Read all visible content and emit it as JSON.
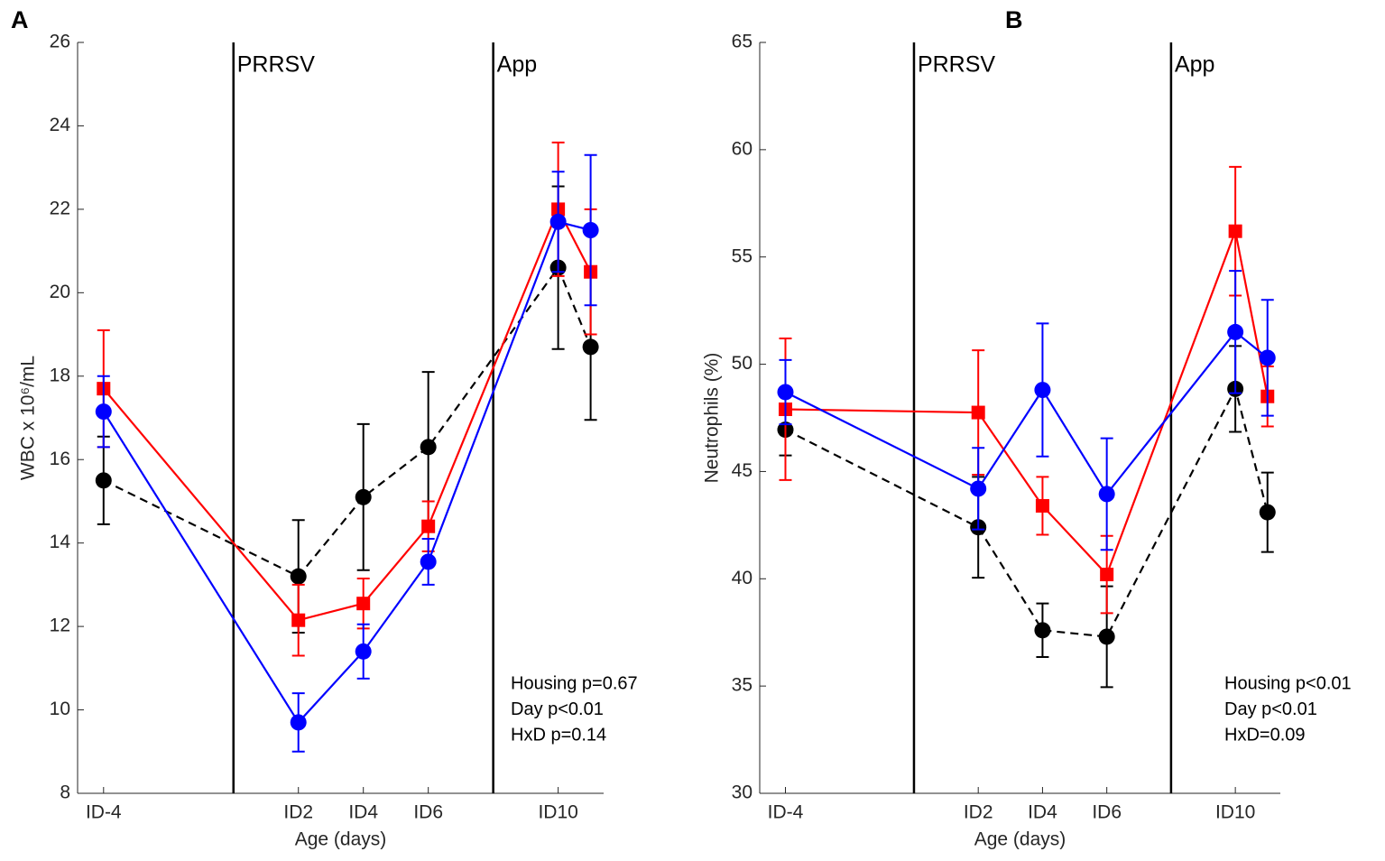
{
  "chart_data": [
    {
      "type": "line",
      "panel": "A",
      "xlabel": "Age (days)",
      "ylabel": "WBC x 10⁶/mL",
      "x": [
        -4,
        2,
        4,
        6,
        10,
        11
      ],
      "xlim": [
        -4.8,
        11.4
      ],
      "xticks": [
        {
          "value": -4,
          "label": "ID-4"
        },
        {
          "value": 2,
          "label": "ID2"
        },
        {
          "value": 4,
          "label": "ID4"
        },
        {
          "value": 6,
          "label": "ID6"
        },
        {
          "value": 10,
          "label": "ID10"
        }
      ],
      "ylim": [
        8,
        26
      ],
      "yticks": [
        8,
        10,
        12,
        14,
        16,
        18,
        20,
        22,
        24,
        26
      ],
      "vlines": [
        {
          "x": 0,
          "label": "PRRSV"
        },
        {
          "x": 8,
          "label": "App"
        }
      ],
      "stats": [
        "Housing p=0.67",
        "Day p<0.01",
        "HxD p=0.14"
      ],
      "series": [
        {
          "color": "#000000",
          "marker": "circle",
          "dashed": true,
          "values": [
            15.5,
            13.2,
            15.1,
            16.3,
            20.6,
            18.7
          ],
          "errors": [
            1.05,
            1.35,
            1.75,
            1.8,
            1.95,
            1.75
          ]
        },
        {
          "color": "#ff0000",
          "marker": "square",
          "dashed": false,
          "values": [
            17.7,
            12.15,
            12.55,
            14.4,
            22.0,
            20.5
          ],
          "errors": [
            1.4,
            0.85,
            0.6,
            0.6,
            1.6,
            1.5
          ]
        },
        {
          "color": "#0000ff",
          "marker": "circle",
          "dashed": false,
          "values": [
            17.15,
            9.7,
            11.4,
            13.55,
            21.7,
            21.5
          ],
          "errors": [
            0.85,
            0.7,
            0.65,
            0.55,
            1.2,
            1.8
          ]
        }
      ]
    },
    {
      "type": "line",
      "panel": "B",
      "xlabel": "Age (days)",
      "ylabel": "Neutrophils (%)",
      "x": [
        -4,
        2,
        4,
        6,
        10,
        11
      ],
      "xlim": [
        -4.8,
        11.4
      ],
      "xticks": [
        {
          "value": -4,
          "label": "ID-4"
        },
        {
          "value": 2,
          "label": "ID2"
        },
        {
          "value": 4,
          "label": "ID4"
        },
        {
          "value": 6,
          "label": "ID6"
        },
        {
          "value": 10,
          "label": "ID10"
        }
      ],
      "ylim": [
        30,
        65
      ],
      "yticks": [
        30,
        35,
        40,
        45,
        50,
        55,
        60,
        65
      ],
      "vlines": [
        {
          "x": 0,
          "label": "PRRSV"
        },
        {
          "x": 8,
          "label": "App"
        }
      ],
      "stats": [
        "Housing p<0.01",
        "Day p<0.01",
        "HxD=0.09"
      ],
      "series": [
        {
          "color": "#000000",
          "marker": "circle",
          "dashed": true,
          "values": [
            46.95,
            42.4,
            37.6,
            37.3,
            48.85,
            43.1
          ],
          "errors": [
            1.2,
            2.35,
            1.25,
            2.35,
            2.0,
            1.85
          ]
        },
        {
          "color": "#ff0000",
          "marker": "square",
          "dashed": false,
          "values": [
            47.9,
            47.75,
            43.4,
            40.2,
            56.2,
            48.5
          ],
          "errors": [
            3.3,
            2.9,
            1.35,
            1.8,
            3.0,
            1.4
          ]
        },
        {
          "color": "#0000ff",
          "marker": "circle",
          "dashed": false,
          "values": [
            48.7,
            44.2,
            48.8,
            43.95,
            51.5,
            50.3
          ],
          "errors": [
            1.5,
            1.9,
            3.1,
            2.6,
            2.85,
            2.7
          ]
        }
      ]
    }
  ]
}
